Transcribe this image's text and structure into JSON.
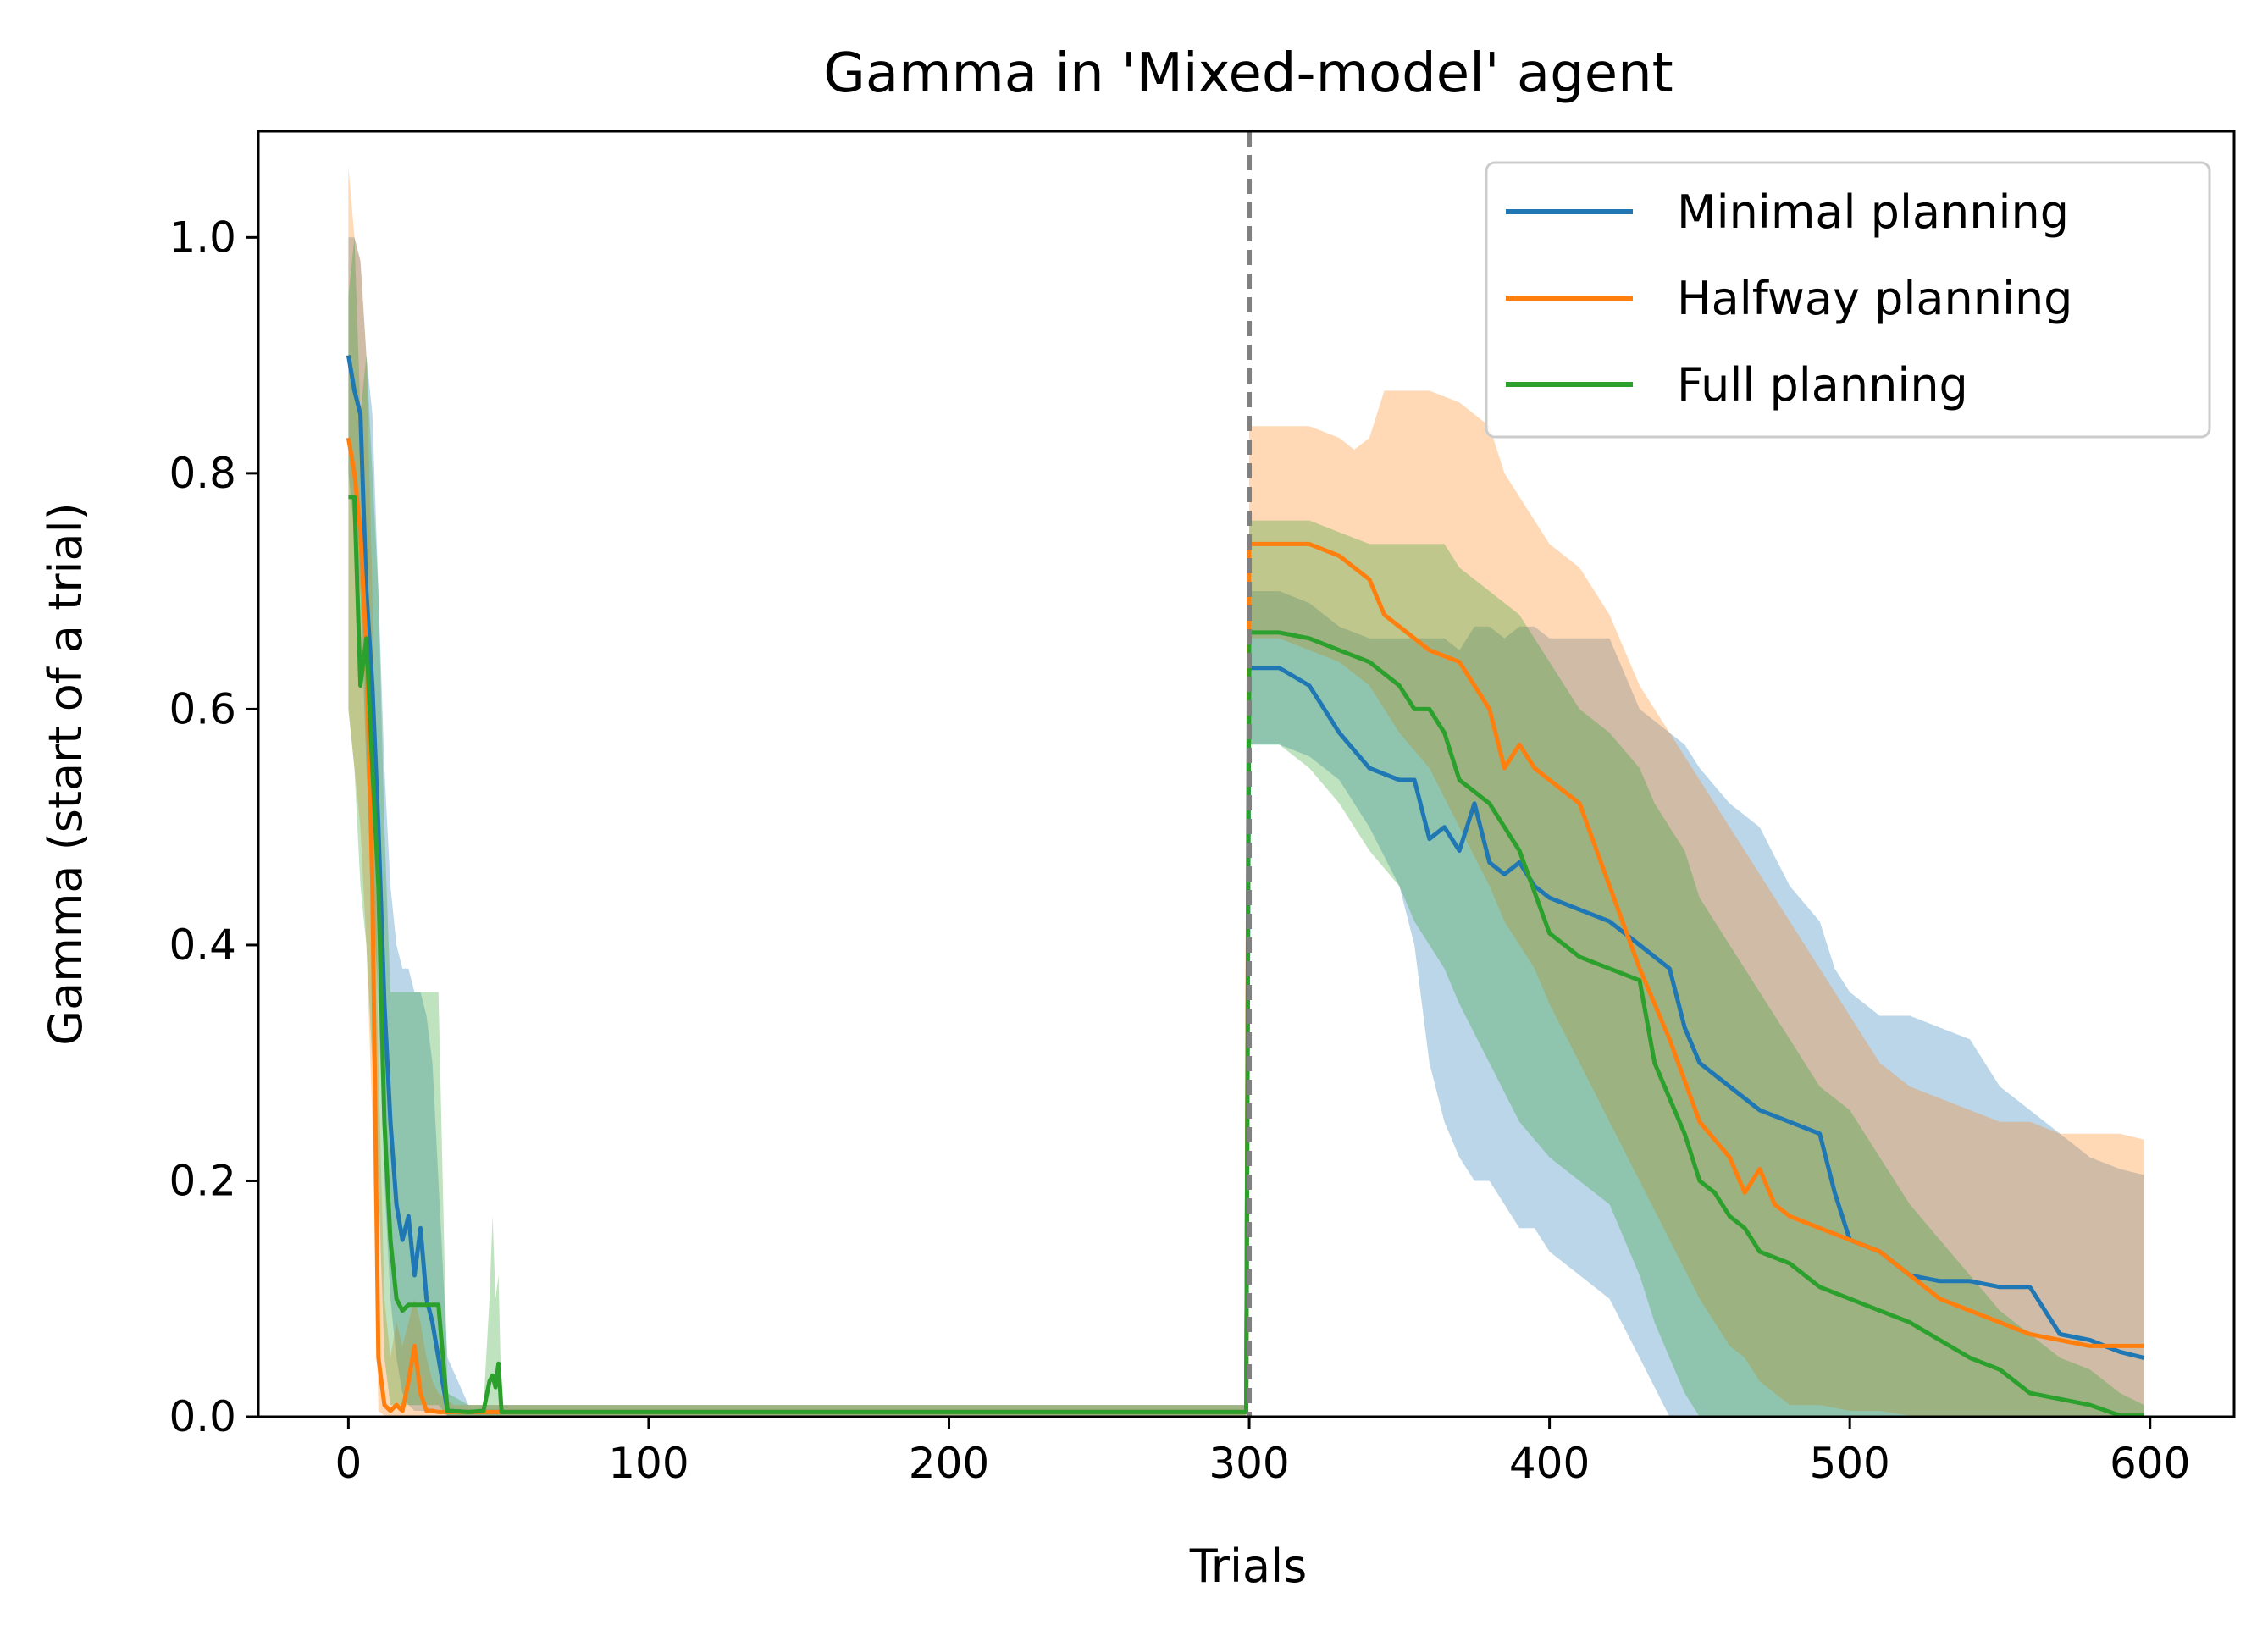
{
  "chart_data": {
    "type": "line",
    "title": "Gamma in 'Mixed-model' agent",
    "xlabel": "Trials",
    "ylabel": "Gamma (start of a trial)",
    "xlim": [
      -30,
      628
    ],
    "ylim": [
      0.0,
      1.09
    ],
    "xticks": [
      0,
      100,
      200,
      300,
      400,
      500,
      600
    ],
    "yticks": [
      0.0,
      0.2,
      0.4,
      0.6,
      0.8,
      1.0
    ],
    "grid": false,
    "legend_position": "top-right",
    "annotations": [
      {
        "type": "vertical-dashed-line",
        "x": 300,
        "color": "#808080"
      }
    ],
    "series": [
      {
        "name": "Minimal planning",
        "color": "#1f77b4",
        "x": [
          0,
          2,
          4,
          6,
          8,
          10,
          12,
          14,
          16,
          18,
          20,
          22,
          24,
          26,
          28,
          30,
          33,
          40,
          100,
          200,
          298,
          299,
          300,
          310,
          320,
          325,
          330,
          340,
          350,
          355,
          360,
          365,
          370,
          375,
          380,
          385,
          390,
          395,
          400,
          410,
          420,
          430,
          440,
          445,
          450,
          460,
          470,
          480,
          490,
          495,
          500,
          510,
          520,
          530,
          540,
          550,
          560,
          570,
          580,
          590,
          598
        ],
        "y": [
          0.9,
          0.87,
          0.85,
          0.7,
          0.62,
          0.5,
          0.35,
          0.25,
          0.18,
          0.15,
          0.17,
          0.12,
          0.16,
          0.1,
          0.08,
          0.05,
          0.005,
          0.004,
          0.004,
          0.004,
          0.004,
          0.004,
          0.635,
          0.635,
          0.62,
          0.6,
          0.58,
          0.55,
          0.54,
          0.54,
          0.49,
          0.5,
          0.48,
          0.52,
          0.47,
          0.46,
          0.47,
          0.45,
          0.44,
          0.43,
          0.42,
          0.4,
          0.38,
          0.33,
          0.3,
          0.28,
          0.26,
          0.25,
          0.24,
          0.19,
          0.15,
          0.14,
          0.12,
          0.115,
          0.115,
          0.11,
          0.11,
          0.07,
          0.065,
          0.055,
          0.05
        ],
        "lower": [
          0.8,
          0.75,
          0.7,
          0.55,
          0.45,
          0.35,
          0.2,
          0.1,
          0.05,
          0.02,
          0.01,
          0.005,
          0.005,
          0.005,
          0.005,
          0.005,
          0.001,
          0.001,
          0.001,
          0.001,
          0.001,
          0.001,
          0.57,
          0.57,
          0.56,
          0.55,
          0.54,
          0.5,
          0.45,
          0.4,
          0.3,
          0.25,
          0.22,
          0.2,
          0.2,
          0.18,
          0.16,
          0.16,
          0.14,
          0.12,
          0.1,
          0.05,
          0.0,
          0.0,
          0.0,
          0.0,
          0.0,
          0.0,
          0.0,
          0.0,
          0.0,
          0.0,
          0.0,
          0.0,
          0.0,
          0.0,
          0.0,
          0.0,
          0.0,
          0.0,
          0.0
        ],
        "upper": [
          1.0,
          1.0,
          0.98,
          0.9,
          0.85,
          0.7,
          0.55,
          0.45,
          0.4,
          0.38,
          0.38,
          0.36,
          0.36,
          0.34,
          0.3,
          0.2,
          0.05,
          0.01,
          0.01,
          0.01,
          0.01,
          0.01,
          0.7,
          0.7,
          0.69,
          0.68,
          0.67,
          0.66,
          0.66,
          0.66,
          0.66,
          0.66,
          0.65,
          0.67,
          0.67,
          0.66,
          0.67,
          0.67,
          0.66,
          0.66,
          0.66,
          0.6,
          0.58,
          0.57,
          0.55,
          0.52,
          0.5,
          0.45,
          0.42,
          0.38,
          0.36,
          0.34,
          0.34,
          0.33,
          0.32,
          0.28,
          0.26,
          0.24,
          0.22,
          0.21,
          0.205
        ]
      },
      {
        "name": "Halfway planning",
        "color": "#ff7f0e",
        "x": [
          0,
          2,
          4,
          6,
          8,
          10,
          12,
          14,
          16,
          18,
          20,
          22,
          24,
          26,
          28,
          30,
          35,
          100,
          200,
          298,
          299,
          300,
          310,
          320,
          330,
          335,
          340,
          345,
          350,
          360,
          370,
          380,
          385,
          390,
          395,
          400,
          410,
          420,
          430,
          440,
          450,
          460,
          465,
          470,
          475,
          480,
          490,
          500,
          510,
          520,
          530,
          540,
          550,
          560,
          570,
          580,
          590,
          598
        ],
        "y": [
          0.83,
          0.8,
          0.75,
          0.65,
          0.45,
          0.05,
          0.01,
          0.005,
          0.01,
          0.005,
          0.03,
          0.06,
          0.02,
          0.005,
          0.005,
          0.004,
          0.004,
          0.004,
          0.004,
          0.004,
          0.004,
          0.74,
          0.74,
          0.74,
          0.73,
          0.72,
          0.71,
          0.68,
          0.67,
          0.65,
          0.64,
          0.6,
          0.55,
          0.57,
          0.55,
          0.54,
          0.52,
          0.45,
          0.38,
          0.32,
          0.25,
          0.22,
          0.19,
          0.21,
          0.18,
          0.17,
          0.16,
          0.15,
          0.14,
          0.12,
          0.1,
          0.09,
          0.08,
          0.07,
          0.065,
          0.06,
          0.06,
          0.06
        ],
        "lower": [
          0.6,
          0.55,
          0.5,
          0.4,
          0.25,
          0.005,
          0.001,
          0.001,
          0.001,
          0.001,
          0.001,
          0.001,
          0.001,
          0.001,
          0.001,
          0.001,
          0.001,
          0.001,
          0.001,
          0.001,
          0.001,
          0.66,
          0.66,
          0.65,
          0.64,
          0.63,
          0.62,
          0.6,
          0.58,
          0.55,
          0.5,
          0.45,
          0.42,
          0.4,
          0.38,
          0.35,
          0.3,
          0.25,
          0.2,
          0.15,
          0.1,
          0.06,
          0.05,
          0.03,
          0.02,
          0.01,
          0.01,
          0.005,
          0.005,
          0.001,
          0.001,
          0.001,
          0.001,
          0.001,
          0.001,
          0.001,
          0.001,
          0.001
        ],
        "upper": [
          1.06,
          1.0,
          0.98,
          0.9,
          0.7,
          0.3,
          0.1,
          0.05,
          0.08,
          0.06,
          0.08,
          0.1,
          0.08,
          0.05,
          0.03,
          0.02,
          0.01,
          0.01,
          0.01,
          0.01,
          0.01,
          0.84,
          0.84,
          0.84,
          0.83,
          0.82,
          0.83,
          0.87,
          0.87,
          0.87,
          0.86,
          0.84,
          0.8,
          0.78,
          0.76,
          0.74,
          0.72,
          0.68,
          0.62,
          0.58,
          0.54,
          0.5,
          0.48,
          0.46,
          0.44,
          0.42,
          0.38,
          0.34,
          0.3,
          0.28,
          0.27,
          0.26,
          0.25,
          0.25,
          0.24,
          0.24,
          0.24,
          0.235
        ]
      },
      {
        "name": "Full planning",
        "color": "#2ca02c",
        "x": [
          0,
          2,
          4,
          6,
          8,
          10,
          12,
          14,
          16,
          18,
          20,
          22,
          25,
          28,
          30,
          33,
          40,
          45,
          47,
          48,
          49,
          50,
          51,
          53,
          60,
          100,
          200,
          298,
          299,
          300,
          310,
          320,
          330,
          340,
          350,
          355,
          360,
          365,
          370,
          380,
          390,
          400,
          410,
          420,
          430,
          435,
          440,
          445,
          450,
          455,
          460,
          465,
          470,
          480,
          490,
          500,
          510,
          520,
          530,
          540,
          550,
          560,
          570,
          580,
          590,
          598
        ],
        "y": [
          0.78,
          0.78,
          0.62,
          0.66,
          0.55,
          0.45,
          0.25,
          0.15,
          0.1,
          0.09,
          0.095,
          0.095,
          0.095,
          0.095,
          0.095,
          0.005,
          0.004,
          0.005,
          0.03,
          0.035,
          0.025,
          0.045,
          0.004,
          0.004,
          0.004,
          0.004,
          0.004,
          0.004,
          0.004,
          0.665,
          0.665,
          0.66,
          0.65,
          0.64,
          0.62,
          0.6,
          0.6,
          0.58,
          0.54,
          0.52,
          0.48,
          0.41,
          0.39,
          0.38,
          0.37,
          0.3,
          0.27,
          0.24,
          0.2,
          0.19,
          0.17,
          0.16,
          0.14,
          0.13,
          0.11,
          0.1,
          0.09,
          0.08,
          0.065,
          0.05,
          0.04,
          0.02,
          0.015,
          0.01,
          0.001,
          0.001
        ],
        "lower": [
          0.6,
          0.55,
          0.45,
          0.4,
          0.3,
          0.2,
          0.05,
          0.01,
          0.01,
          0.01,
          0.01,
          0.01,
          0.01,
          0.01,
          0.01,
          0.001,
          0.001,
          0.001,
          0.001,
          0.001,
          0.001,
          0.001,
          0.001,
          0.001,
          0.001,
          0.001,
          0.001,
          0.001,
          0.001,
          0.57,
          0.57,
          0.55,
          0.52,
          0.48,
          0.45,
          0.42,
          0.4,
          0.38,
          0.35,
          0.3,
          0.25,
          0.22,
          0.2,
          0.18,
          0.12,
          0.08,
          0.05,
          0.02,
          0.0,
          0.0,
          0.0,
          0.0,
          0.0,
          0.0,
          0.0,
          0.0,
          0.0,
          0.0,
          0.0,
          0.0,
          0.0,
          0.0,
          0.0,
          0.0,
          0.0,
          0.0
        ],
        "upper": [
          0.95,
          1.0,
          0.85,
          0.9,
          0.8,
          0.7,
          0.5,
          0.36,
          0.36,
          0.36,
          0.36,
          0.36,
          0.36,
          0.36,
          0.36,
          0.02,
          0.01,
          0.01,
          0.1,
          0.17,
          0.1,
          0.12,
          0.01,
          0.01,
          0.01,
          0.01,
          0.01,
          0.01,
          0.01,
          0.76,
          0.76,
          0.76,
          0.75,
          0.74,
          0.74,
          0.74,
          0.74,
          0.74,
          0.72,
          0.7,
          0.68,
          0.64,
          0.6,
          0.58,
          0.55,
          0.52,
          0.5,
          0.48,
          0.44,
          0.42,
          0.4,
          0.38,
          0.36,
          0.32,
          0.28,
          0.26,
          0.22,
          0.18,
          0.15,
          0.12,
          0.09,
          0.07,
          0.05,
          0.04,
          0.02,
          0.01
        ]
      }
    ]
  }
}
